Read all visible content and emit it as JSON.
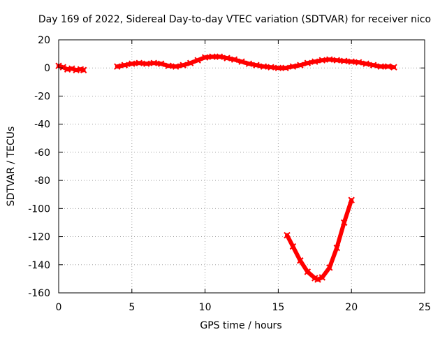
{
  "chart_data": {
    "type": "scatter",
    "title": "Day 169 of 2022, Sidereal Day-to-day VTEC variation (SDTVAR) for receiver nico",
    "xlabel": "GPS time / hours",
    "ylabel": "SDTVAR / TECUs",
    "xlim": [
      0,
      25
    ],
    "ylim": [
      -160,
      20
    ],
    "xticks": [
      0,
      5,
      10,
      15,
      20,
      25
    ],
    "xtick_labels": [
      "0",
      "5",
      "10",
      "15",
      "20",
      "25"
    ],
    "yticks": [
      20,
      0,
      -20,
      -40,
      -60,
      -80,
      -100,
      -120,
      -140,
      -160
    ],
    "ytick_labels": [
      "20",
      "0",
      "-20",
      "-40",
      "-60",
      "-80",
      "-100",
      "-120",
      "-140",
      "-160"
    ],
    "grid": true,
    "series_color": "#ff0000",
    "series": [
      {
        "name": "segment-1",
        "x": [
          0.0,
          0.3,
          0.6,
          0.9,
          1.2,
          1.5,
          1.7
        ],
        "y": [
          1.5,
          0.5,
          -1.0,
          -0.5,
          -1.5,
          -1.0,
          -1.5
        ]
      },
      {
        "name": "segment-2",
        "x": [
          4.0,
          4.5,
          5.0,
          5.5,
          6.0,
          6.5,
          7.0,
          7.5,
          8.0,
          8.5,
          9.0,
          9.5,
          10.0,
          10.5,
          11.0,
          11.5,
          12.0,
          12.5,
          13.0,
          13.5,
          14.0,
          14.5,
          15.0,
          15.5,
          16.0,
          16.5,
          17.0,
          17.5,
          18.0,
          18.5,
          19.0,
          19.5,
          20.0,
          20.5,
          21.0,
          21.5,
          22.0,
          22.5,
          22.9
        ],
        "y": [
          1.0,
          2.0,
          3.0,
          3.5,
          3.0,
          3.5,
          3.0,
          1.5,
          1.0,
          2.0,
          3.5,
          5.5,
          7.5,
          8.0,
          8.0,
          7.0,
          6.0,
          4.5,
          3.0,
          2.0,
          1.0,
          0.5,
          0.0,
          0.0,
          1.0,
          2.0,
          3.5,
          4.5,
          5.5,
          6.0,
          5.5,
          5.0,
          4.5,
          4.0,
          3.0,
          2.0,
          1.0,
          1.0,
          0.5
        ]
      },
      {
        "name": "segment-3",
        "x": [
          15.6,
          16.0,
          16.5,
          17.0,
          17.5,
          17.7,
          18.0,
          18.5,
          19.0,
          19.5,
          20.0
        ],
        "y": [
          -119,
          -127,
          -137,
          -145,
          -149.5,
          -150.5,
          -149,
          -142,
          -128,
          -110,
          -94
        ]
      }
    ]
  }
}
